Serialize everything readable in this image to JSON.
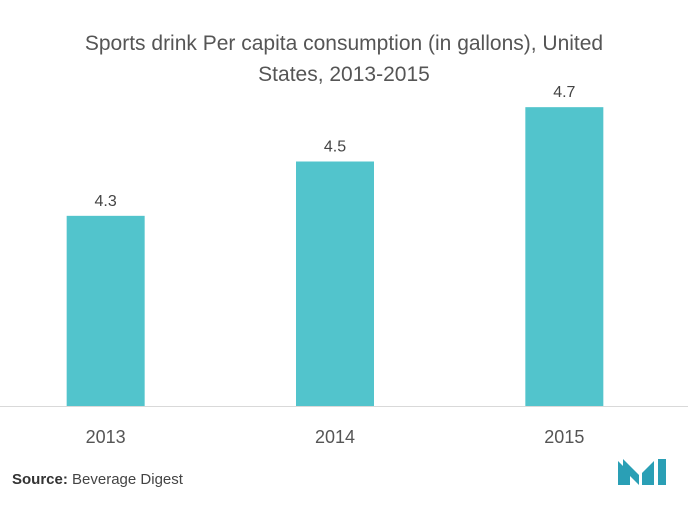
{
  "chart_data": {
    "type": "bar",
    "title_lines": [
      "Sports drink Per capita consumption (in gallons), United",
      "States, 2013-2015"
    ],
    "categories": [
      "2013",
      "2014",
      "2015"
    ],
    "values": [
      4.3,
      4.5,
      4.7
    ],
    "data_labels": [
      "4.3",
      "4.5",
      "4.7"
    ],
    "ylim": [
      3.6,
      4.8
    ],
    "grid": false,
    "legend": "none",
    "bar_color": "#52c4cc"
  },
  "footer": {
    "source_label": "Source:",
    "source_text": "Beverage Digest",
    "logo_icon": "mordor-intelligence-logo",
    "logo_color": "#2a9fb5"
  }
}
